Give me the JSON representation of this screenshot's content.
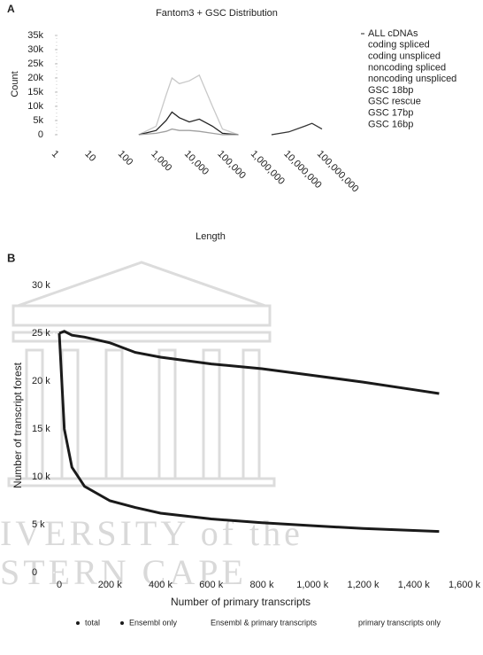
{
  "chart_data": [
    {
      "type": "line",
      "panel": "A",
      "title": "Fantom3 + GSC Distribution",
      "x_label": "Length",
      "y_label": "Count",
      "xscale": "log",
      "xlim": [
        1,
        100000000
      ],
      "xticks": [
        1,
        10,
        100,
        {
          "value": 1000,
          "label": "1,000"
        },
        {
          "value": 10000,
          "label": "10,000"
        },
        {
          "value": 100000,
          "label": "100,000"
        },
        {
          "value": 1000000,
          "label": "1,000,000"
        },
        {
          "value": 10000000,
          "label": "10,000,000"
        },
        {
          "value": 100000000,
          "label": "100,000,000"
        }
      ],
      "ylim": [
        0,
        35000
      ],
      "yticks": [
        0,
        {
          "value": 5000,
          "label": "5k"
        },
        {
          "value": 10000,
          "label": "10k"
        },
        {
          "value": 15000,
          "label": "15k"
        },
        {
          "value": 20000,
          "label": "20k"
        },
        {
          "value": 25000,
          "label": "25k"
        },
        {
          "value": 30000,
          "label": "30k"
        },
        {
          "value": 35000,
          "label": "35k"
        }
      ],
      "x": [
        300,
        1000,
        2000,
        3000,
        5000,
        10000,
        20000,
        50000,
        100000,
        300000,
        3000000,
        10000000,
        30000000,
        50000000,
        100000000
      ],
      "series": [
        {
          "name": "ALL cDNAs",
          "color": "#c8c8c8",
          "values": [
            0,
            3000,
            14000,
            20000,
            18000,
            19000,
            21000,
            10000,
            2000,
            0,
            null,
            null,
            null,
            null,
            null
          ]
        },
        {
          "name": "coding spliced",
          "color": "#222222",
          "values": [
            0,
            1500,
            5000,
            8000,
            6000,
            4500,
            5500,
            3000,
            500,
            0,
            null,
            null,
            null,
            null,
            null
          ]
        },
        {
          "name": "coding unspliced",
          "color": "#a0a0a0",
          "values": [
            0,
            500,
            1200,
            2000,
            1500,
            1500,
            1200,
            500,
            0,
            0,
            null,
            null,
            null,
            null,
            null
          ]
        },
        {
          "name": "noncoding spliced",
          "color": "#888888",
          "values": [
            null,
            null,
            null,
            null,
            null,
            null,
            null,
            null,
            null,
            null,
            null,
            null,
            null,
            null,
            null
          ]
        },
        {
          "name": "noncoding unspliced",
          "color": "#888888",
          "values": [
            null,
            null,
            null,
            null,
            null,
            null,
            null,
            null,
            null,
            null,
            null,
            null,
            null,
            null,
            null
          ]
        },
        {
          "name": "GSC 18bp",
          "color": "#888888",
          "values": [
            null,
            null,
            null,
            null,
            null,
            null,
            null,
            null,
            null,
            null,
            null,
            null,
            null,
            null,
            null
          ]
        },
        {
          "name": "GSC rescue",
          "color": "#888888",
          "values": [
            null,
            null,
            null,
            null,
            null,
            null,
            null,
            null,
            null,
            null,
            null,
            null,
            null,
            null,
            null
          ]
        },
        {
          "name": "GSC 17bp",
          "color": "#333333",
          "values": [
            null,
            null,
            null,
            null,
            null,
            null,
            null,
            null,
            null,
            null,
            0,
            1000,
            3000,
            4000,
            2000
          ]
        },
        {
          "name": "GSC 16bp",
          "color": "#888888",
          "values": [
            null,
            null,
            null,
            null,
            null,
            null,
            null,
            null,
            null,
            null,
            null,
            null,
            null,
            null,
            null
          ]
        }
      ]
    },
    {
      "type": "line",
      "panel": "B",
      "x_label": "Number of primary transcripts",
      "y_label": "Number of transcript forest",
      "watermark": [
        "IVERSITY of the",
        "STERN CAPE"
      ],
      "xlim": [
        0,
        1600000
      ],
      "xticks": [
        0,
        {
          "value": 200000,
          "label": "200 k"
        },
        {
          "value": 400000,
          "label": "400 k"
        },
        {
          "value": 600000,
          "label": "600 k"
        },
        {
          "value": 800000,
          "label": "800 k"
        },
        {
          "value": 1000000,
          "label": "1,000 k"
        },
        {
          "value": 1200000,
          "label": "1,200 k"
        },
        {
          "value": 1400000,
          "label": "1,400 k"
        },
        {
          "value": 1600000,
          "label": "1,600 k"
        }
      ],
      "ylim": [
        0,
        30000
      ],
      "yticks": [
        0,
        {
          "value": 5000,
          "label": "5 k"
        },
        {
          "value": 10000,
          "label": "10 k"
        },
        {
          "value": 15000,
          "label": "15 k"
        },
        {
          "value": 20000,
          "label": "20 k"
        },
        {
          "value": 25000,
          "label": "25 k"
        },
        {
          "value": 30000,
          "label": "30 k"
        }
      ],
      "x": [
        0,
        20000,
        50000,
        100000,
        200000,
        300000,
        400000,
        600000,
        800000,
        1000000,
        1200000,
        1400000,
        1500000
      ],
      "series": [
        {
          "name": "total",
          "color": "#1a1a1a",
          "values": [
            25000,
            25200,
            24800,
            24600,
            24000,
            23000,
            22500,
            21800,
            21300,
            20600,
            19900,
            19100,
            18700
          ]
        },
        {
          "name": "Ensembl only",
          "color": "#1a1a1a",
          "values": [
            25000,
            15000,
            11000,
            9000,
            7500,
            6800,
            6200,
            5600,
            5200,
            4900,
            4600,
            4400,
            4300
          ]
        },
        {
          "name": "Ensembl & primary transcripts",
          "color": "#1a1a1a",
          "values": [
            null,
            null,
            null,
            null,
            null,
            null,
            null,
            null,
            null,
            null,
            null,
            null,
            null
          ]
        },
        {
          "name": "primary transcripts only",
          "color": "#1a1a1a",
          "values": [
            null,
            null,
            null,
            null,
            null,
            null,
            null,
            null,
            null,
            null,
            null,
            null,
            null
          ]
        }
      ]
    }
  ]
}
